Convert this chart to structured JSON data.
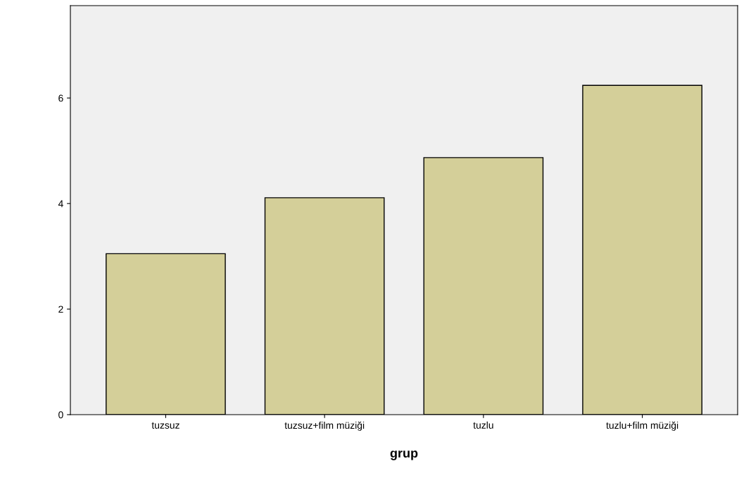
{
  "chart_data": {
    "type": "bar",
    "xlabel": "grup",
    "categories": [
      "tuzsuz",
      "tuzsuz+film müziği",
      "tuzlu",
      "tuzlu+film müziği"
    ],
    "values": [
      3.05,
      4.11,
      4.87,
      6.24
    ],
    "color": "#d4cf99",
    "ylim": [
      0,
      7.75
    ],
    "yticks": [
      0,
      2,
      4,
      6
    ],
    "grid": false,
    "legend": false
  }
}
